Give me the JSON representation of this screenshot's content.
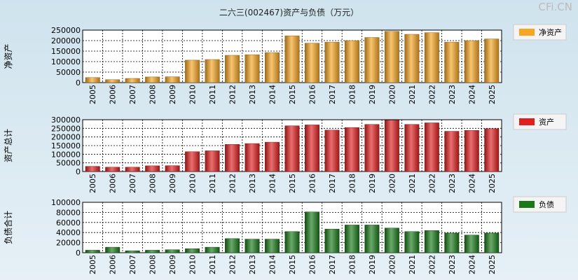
{
  "title": "二六三(002467)资产与负债（万元）",
  "brand": "CFi.CN",
  "chart_data": [
    {
      "type": "bar",
      "ylabel": "净资产",
      "legend": "净资产",
      "color": "#f5a623",
      "ylim": [
        0,
        250000
      ],
      "yticks": [
        0,
        50000,
        100000,
        150000,
        200000,
        250000
      ],
      "categories": [
        "2005",
        "2006",
        "2007",
        "2008",
        "2009",
        "2010",
        "2011",
        "2012",
        "2013",
        "2014",
        "2015",
        "2016",
        "2017",
        "2018",
        "2019",
        "2020",
        "2021",
        "2022",
        "2023",
        "2024",
        "2025"
      ],
      "values": [
        24000,
        14000,
        20000,
        27000,
        28000,
        107000,
        110000,
        130000,
        133000,
        143000,
        223000,
        188000,
        193000,
        200000,
        215000,
        244000,
        230000,
        238000,
        193000,
        200000,
        208000
      ]
    },
    {
      "type": "bar",
      "ylabel": "资产总计",
      "legend": "资产",
      "color": "#e02020",
      "ylim": [
        0,
        300000
      ],
      "yticks": [
        0,
        50000,
        100000,
        150000,
        200000,
        250000,
        300000
      ],
      "categories": [
        "2005",
        "2006",
        "2007",
        "2008",
        "2009",
        "2010",
        "2011",
        "2012",
        "2013",
        "2014",
        "2015",
        "2016",
        "2017",
        "2018",
        "2019",
        "2020",
        "2021",
        "2022",
        "2023",
        "2024",
        "2025"
      ],
      "values": [
        30000,
        25000,
        25000,
        33000,
        34000,
        115000,
        120000,
        157000,
        162000,
        170000,
        265000,
        270000,
        240000,
        255000,
        273000,
        298000,
        273000,
        282000,
        233000,
        238000,
        248000
      ]
    },
    {
      "type": "bar",
      "ylabel": "负债合计",
      "legend": "负债",
      "color": "#1a7a1a",
      "ylim": [
        0,
        100000
      ],
      "yticks": [
        0,
        20000,
        40000,
        60000,
        80000,
        100000
      ],
      "categories": [
        "2005",
        "2006",
        "2007",
        "2008",
        "2009",
        "2010",
        "2011",
        "2012",
        "2013",
        "2014",
        "2015",
        "2016",
        "2017",
        "2018",
        "2019",
        "2020",
        "2021",
        "2022",
        "2023",
        "2024",
        "2025"
      ],
      "values": [
        5000,
        11000,
        4000,
        5000,
        6000,
        8000,
        11000,
        28000,
        27000,
        27000,
        42000,
        81000,
        47000,
        55000,
        55000,
        49000,
        42000,
        44000,
        39000,
        35000,
        39000
      ]
    }
  ]
}
